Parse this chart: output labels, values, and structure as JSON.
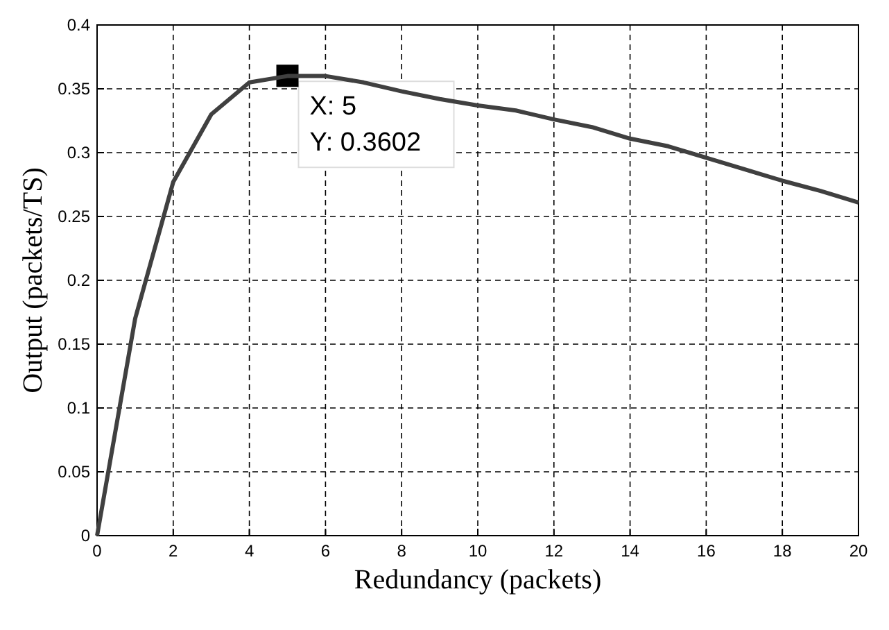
{
  "chart_data": {
    "type": "line",
    "xlabel": "Redundancy (packets)",
    "ylabel": "Output (packets/TS)",
    "x": [
      0,
      1,
      2,
      3,
      4,
      5,
      6,
      7,
      8,
      9,
      10,
      11,
      12,
      13,
      14,
      15,
      16,
      17,
      18,
      19,
      20
    ],
    "series": [
      {
        "color": "#404040",
        "values": [
          0,
          0.17,
          0.277,
          0.33,
          0.355,
          0.36,
          0.36,
          0.355,
          0.348,
          0.342,
          0.337,
          0.333,
          0.326,
          0.32,
          0.311,
          0.305,
          0.296,
          0.287,
          0.278,
          0.27,
          0.261
        ]
      }
    ],
    "xlim": [
      0,
      20
    ],
    "xticks": [
      0,
      2,
      4,
      6,
      8,
      10,
      12,
      14,
      16,
      18,
      20
    ],
    "ylim": [
      0,
      0.4
    ],
    "yticks": [
      0,
      0.05,
      0.1,
      0.15,
      0.2,
      0.25,
      0.3,
      0.35,
      0.4
    ],
    "grid": true,
    "line_style": "solid",
    "marker": "none",
    "annotations": [
      {
        "text": "X: 5\nY: 0.3602",
        "x": 5,
        "y": 0.3602
      }
    ]
  }
}
